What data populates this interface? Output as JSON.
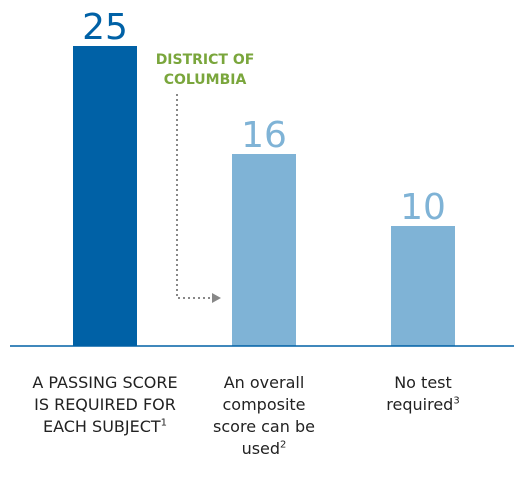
{
  "chart_data": {
    "type": "bar",
    "categories": [
      "A PASSING SCORE IS REQUIRED FOR EACH SUBJECT",
      "An overall composite score can be used",
      "No test required"
    ],
    "category_notes": [
      "1",
      "2",
      "3"
    ],
    "values": [
      25,
      16,
      10
    ],
    "colors": [
      "#0061a6",
      "#7fb3d6",
      "#7fb3d6"
    ],
    "ylim": [
      0,
      25
    ],
    "annotation": "DISTRICT OF COLUMBIA"
  }
}
